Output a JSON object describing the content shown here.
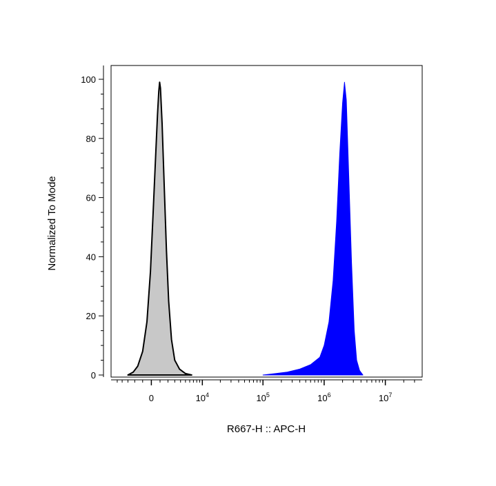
{
  "chart_data": {
    "type": "area",
    "xlabel": "R667-H :: APC-H",
    "ylabel": "Normalized To Mode",
    "x_scale": "biexponential",
    "ylim": [
      0,
      100
    ],
    "y_ticks": [
      {
        "value": 0,
        "label": "0"
      },
      {
        "value": 20,
        "label": "20"
      },
      {
        "value": 40,
        "label": "40"
      },
      {
        "value": 60,
        "label": "60"
      },
      {
        "value": 80,
        "label": "80"
      },
      {
        "value": 100,
        "label": "100"
      }
    ],
    "x_ticks": [
      {
        "value": 0,
        "base": "0",
        "exp": ""
      },
      {
        "value": 10000,
        "base": "10",
        "exp": "4"
      },
      {
        "value": 100000,
        "base": "10",
        "exp": "5"
      },
      {
        "value": 1000000,
        "base": "10",
        "exp": "6"
      },
      {
        "value": 10000000,
        "base": "10",
        "exp": "7"
      }
    ],
    "grid": false,
    "series": [
      {
        "color": "#c8c8c8",
        "stroke": "#000000",
        "points": [
          [
            -3000,
            0
          ],
          [
            -2200,
            1
          ],
          [
            -1600,
            3
          ],
          [
            -1000,
            8
          ],
          [
            -500,
            18
          ],
          [
            -100,
            35
          ],
          [
            200,
            55
          ],
          [
            500,
            75
          ],
          [
            700,
            88
          ],
          [
            850,
            96
          ],
          [
            950,
            99
          ],
          [
            1050,
            97
          ],
          [
            1250,
            85
          ],
          [
            1500,
            65
          ],
          [
            1800,
            42
          ],
          [
            2100,
            25
          ],
          [
            2500,
            12
          ],
          [
            3000,
            5
          ],
          [
            3800,
            2
          ],
          [
            5000,
            0.5
          ],
          [
            6500,
            0
          ]
        ]
      },
      {
        "color": "#0000ff",
        "stroke": "#0000ff",
        "points": [
          [
            100000,
            0
          ],
          [
            160000,
            0.5
          ],
          [
            250000,
            1
          ],
          [
            400000,
            2
          ],
          [
            600000,
            3.5
          ],
          [
            850000,
            6
          ],
          [
            1000000,
            10
          ],
          [
            1200000,
            18
          ],
          [
            1400000,
            32
          ],
          [
            1600000,
            52
          ],
          [
            1800000,
            75
          ],
          [
            2000000,
            92
          ],
          [
            2150000,
            99
          ],
          [
            2300000,
            93
          ],
          [
            2500000,
            70
          ],
          [
            2800000,
            38
          ],
          [
            3100000,
            15
          ],
          [
            3400000,
            5
          ],
          [
            3800000,
            1.5
          ],
          [
            4300000,
            0
          ]
        ]
      }
    ]
  }
}
